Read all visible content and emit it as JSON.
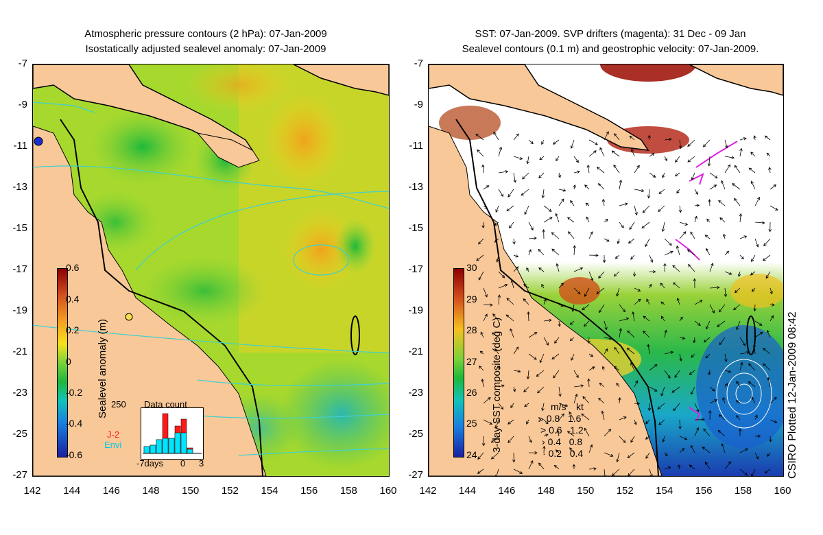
{
  "left": {
    "title_line1": "Atmospheric pressure contours (2 hPa): 07-Jan-2009",
    "title_line2": "Isostatically adjusted sealevel anomaly: 07-Jan-2009",
    "colorbar_label": "Sealevel anomaly (m)",
    "colorbar_ticks": [
      "0.6",
      "0.4",
      "0.2",
      "0",
      "-0.2",
      "-0.4",
      "-0.6"
    ],
    "inset": {
      "title": "Data count",
      "ymax": "250",
      "series1": "J-2",
      "series2": "Envi",
      "x_left": "-7days",
      "x_zero": "0",
      "x_right": "3",
      "series1_color": "#ff1a1a",
      "series2_color": "#00e5ff"
    }
  },
  "right": {
    "title_line1": "SST: 07-Jan-2009. SVP drifters (magenta): 31 Dec - 09 Jan",
    "title_line2": "Sealevel contours (0.1 m) and geostrophic velocity: 07-Jan-2009.",
    "colorbar_label": "3-day SST composite (deg C)",
    "colorbar_ticks": [
      "30",
      "29",
      "28",
      "27",
      "26",
      "25",
      "24"
    ],
    "legend": {
      "unit1": "m/s",
      "unit2": "kt",
      "rows": [
        {
          "ms": "0.8",
          "kt": "1.6"
        },
        {
          "ms": "0.6",
          "kt": "1.2"
        },
        {
          "ms": "0.4",
          "kt": "0.8"
        },
        {
          "ms": "0.2",
          "kt": "0.4"
        }
      ]
    },
    "side_text": "CSIRO Plotted 12-Jan-2009 08:42"
  },
  "axes": {
    "y_ticks": [
      "-7",
      "-9",
      "-11",
      "-13",
      "-15",
      "-17",
      "-19",
      "-21",
      "-23",
      "-25",
      "-27"
    ],
    "x_ticks": [
      "142",
      "144",
      "146",
      "148",
      "150",
      "152",
      "154",
      "156",
      "158",
      "160"
    ]
  },
  "colors": {
    "land": "#f9c898",
    "sla_green": "#7bd13a",
    "sla_yellow": "#f5d21a",
    "drifter": "#e020e0",
    "contour": "#40d0d0"
  }
}
